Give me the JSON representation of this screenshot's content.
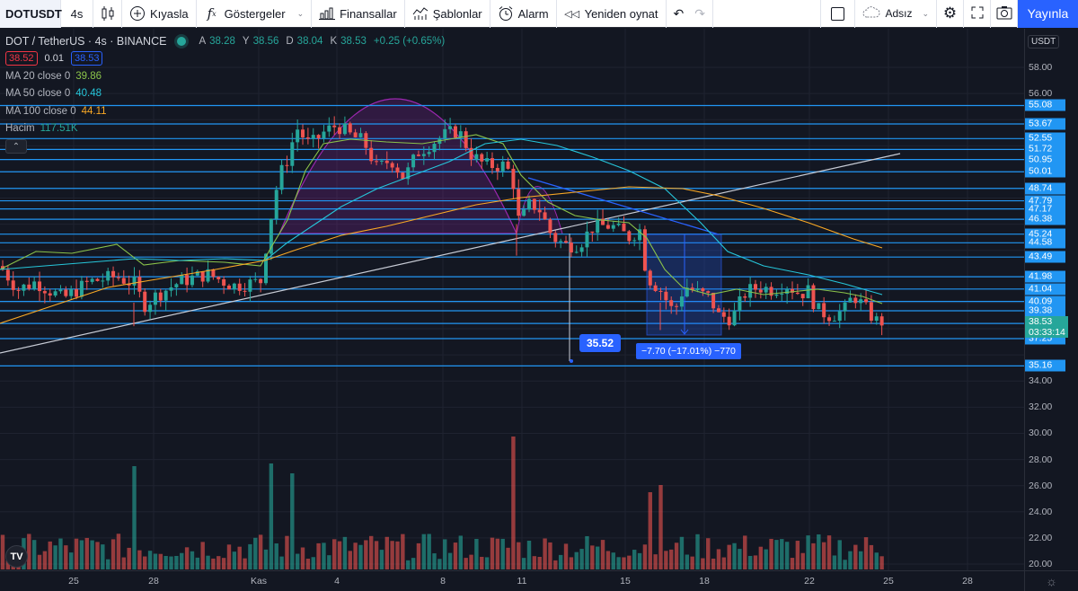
{
  "toolbar": {
    "symbol": "DOTUSDT",
    "interval": "4s",
    "compare_label": "Kıyasla",
    "indicators_label": "Göstergeler",
    "financials_label": "Finansallar",
    "templates_label": "Şablonlar",
    "alarm_label": "Alarm",
    "replay_label": "Yeniden oynat",
    "layout_name": "Adsız",
    "publish_label": "Yayınla"
  },
  "legend": {
    "title": "DOT / TetherUS · 4s · BINANCE",
    "ohlc": [
      {
        "k": "A",
        "v": "38.28"
      },
      {
        "k": "Y",
        "v": "38.56"
      },
      {
        "k": "D",
        "v": "38.04"
      },
      {
        "k": "K",
        "v": "38.53"
      }
    ],
    "change": "+0.25 (+0.65%)",
    "bid": "38.52",
    "spread": "0.01",
    "ask": "38.53",
    "indicators": [
      {
        "name": "MA 20 close 0",
        "value": "39.86",
        "color": "#8bc34a"
      },
      {
        "name": "MA 50 close 0",
        "value": "40.48",
        "color": "#26c6da"
      },
      {
        "name": "MA 100 close 0",
        "value": "44.11",
        "color": "#f9a825"
      },
      {
        "name": "Hacim",
        "value": "117.51K",
        "color": "#26a69a"
      }
    ],
    "collapse_icon": "chevron-up-icon"
  },
  "price_axis": {
    "currency": "USDT",
    "scale_labels": [
      "58.00",
      "56.00",
      "34.00",
      "32.00",
      "30.00",
      "28.00",
      "26.00",
      "24.00",
      "22.00",
      "20.00"
    ],
    "level_tags": [
      "55.08",
      "53.67",
      "52.55",
      "51.72",
      "50.95",
      "50.01",
      "48.74",
      "47.79",
      "47.17",
      "46.38",
      "45.24",
      "44.58",
      "43.49",
      "41.98",
      "41.04",
      "40.09",
      "39.38",
      "38.41",
      "37.25",
      "35.16"
    ],
    "last_price": "38.53",
    "countdown": "03:33:14"
  },
  "time_axis": {
    "labels": [
      {
        "text": "25",
        "x": 82
      },
      {
        "text": "28",
        "x": 171
      },
      {
        "text": "Kas",
        "x": 288
      },
      {
        "text": "4",
        "x": 375
      },
      {
        "text": "8",
        "x": 493
      },
      {
        "text": "11",
        "x": 581
      },
      {
        "text": "15",
        "x": 696
      },
      {
        "text": "18",
        "x": 784
      },
      {
        "text": "22",
        "x": 901
      },
      {
        "text": "25",
        "x": 989
      },
      {
        "text": "28",
        "x": 1077
      }
    ]
  },
  "annotations": {
    "low_callout": "35.52",
    "measure_label": "−7.70 (−17.01%) −770"
  },
  "colors": {
    "up": "#26a69a",
    "down": "#ef5350",
    "level_line": "#2196f3",
    "accent": "#2962ff",
    "ma20": "#8bc34a",
    "ma50": "#26c6da",
    "ma100": "#f9a825"
  },
  "chart_data": {
    "type": "candlestick",
    "title": "DOT / TetherUS · 4s · BINANCE",
    "ylabel": "USDT",
    "ylim": [
      19.5,
      60
    ],
    "x_ticks": [
      "25",
      "28",
      "Kas",
      "4",
      "8",
      "11",
      "15",
      "18",
      "22",
      "25",
      "28"
    ],
    "horizontal_levels": [
      55.08,
      53.67,
      52.55,
      51.72,
      50.95,
      50.01,
      48.74,
      47.79,
      47.17,
      46.38,
      45.24,
      44.58,
      43.49,
      41.98,
      41.04,
      40.09,
      39.38,
      38.41,
      37.25,
      35.16
    ],
    "last": {
      "open": 38.28,
      "high": 38.56,
      "low": 38.04,
      "close": 38.53,
      "change": 0.25,
      "change_pct": 0.65
    },
    "moving_averages": {
      "MA20": 39.86,
      "MA50": 40.48,
      "MA100": 44.11
    },
    "volume_last": "117.51K",
    "drawings": {
      "arc_pattern": "cup/arc from ~Oct 31 to ~Nov 11",
      "trendline": "rising line from left edge ~33.8 to ~51 near Nov 25",
      "measure": {
        "from": 45.3,
        "to": 37.6,
        "delta": -7.7,
        "pct": -17.01,
        "ticks": -770
      },
      "low_marker": 35.52
    }
  }
}
